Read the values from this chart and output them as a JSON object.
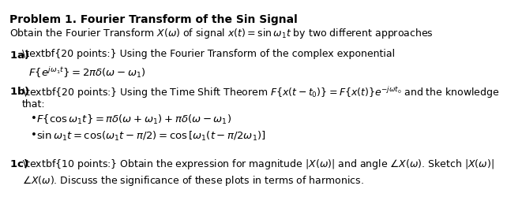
{
  "title": "Problem 1. Fourier Transform of the Sin Signal",
  "subtitle": "Obtain the Fourier Transform $X(\\omega)$ of signal $x(t) = \\sin \\omega_1 t$ by two different approaches",
  "part_a_label": "1a)",
  "part_a_points": "\\textbf{20 points:}",
  "part_a_text": " Using the Fourier Transform of the complex exponential",
  "part_a_formula": "$F\\left\\{e^{j\\omega_1 t}\\right\\} = 2\\pi\\delta(\\omega - \\omega_1)$",
  "part_b_label": "1b)",
  "part_b_points": "\\textbf{20 points:}",
  "part_b_text": " Using the Time Shift Theorem $F\\left\\{x(t-t_0)\\right\\} = F\\left\\{x(t)\\right\\}e^{-j\\omega t_0}$ and the knowledge",
  "part_b_text2": "that:",
  "part_b_bullet1": "$F\\left\\{\\cos \\omega_1 t\\right\\} = \\pi\\delta(\\omega+\\omega_1) + \\pi\\delta(\\omega-\\omega_1)$",
  "part_b_bullet2": "$\\sin \\omega_1 t = \\cos(\\omega_1 t - \\pi/2) = \\cos\\left[\\omega_1(t - \\pi/2\\omega_1)\\right]$",
  "part_c_label": "1c)",
  "part_c_points": "\\textbf{10 points:}",
  "part_c_text": " Obtain the expression for magnitude $\\left|X(\\omega)\\right|$ and angle $\\angle X(\\omega)$. Sketch $\\left|X(\\omega)\\right|$",
  "part_c_text2": "$\\angle X(\\omega)$. Discuss the significance of these plots in terms of harmonics.",
  "bg_color": "#ffffff",
  "text_color": "#000000",
  "font_size": 9.5
}
